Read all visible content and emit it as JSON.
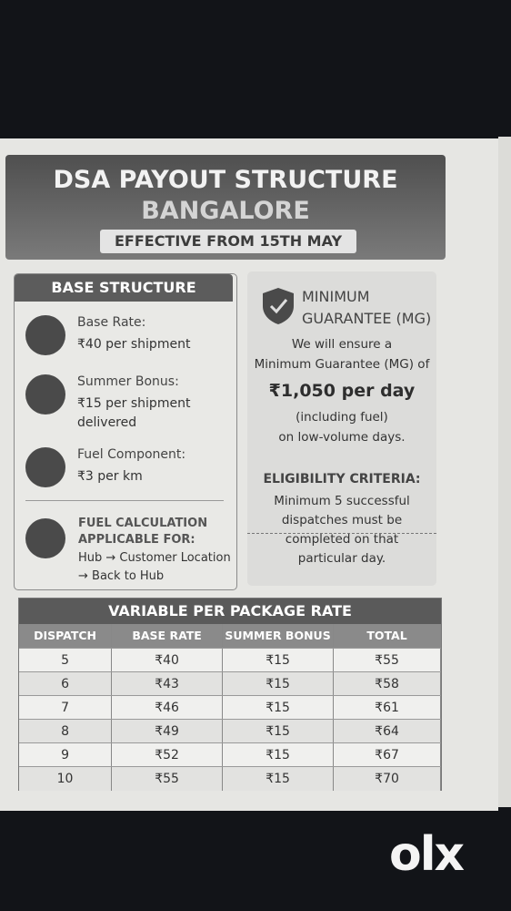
{
  "header": {
    "title": "DSA PAYOUT STRUCTURE",
    "city": "BANGALORE",
    "effective": "EFFECTIVE FROM 15TH MAY"
  },
  "base_structure": {
    "title": "BASE STRUCTURE",
    "items": [
      {
        "label": "Base Rate:",
        "lines": [
          "₹40 per shipment"
        ]
      },
      {
        "label": "Summer Bonus:",
        "lines": [
          "₹15 per shipment",
          "delivered"
        ]
      },
      {
        "label": "Fuel Component:",
        "lines": [
          "₹3 per km"
        ]
      }
    ],
    "fuel_calculation": {
      "title": [
        "FUEL CALCULATION",
        "APPLICABLE FOR:"
      ],
      "lines": [
        "Hub → Customer Location",
        "→ Back to Hub"
      ]
    }
  },
  "minimum_guarantee": {
    "title": [
      "MINIMUM",
      "GUARANTEE (MG)"
    ],
    "intro": [
      "We will ensure a",
      "Minimum Guarantee (MG) of"
    ],
    "amount": "₹1,050 per day",
    "note": [
      "(including fuel)",
      "on low-volume days."
    ],
    "eligibility_title": "ELIGIBILITY CRITERIA:",
    "eligibility": [
      "Minimum 5 successful",
      "dispatches must be",
      "completed on that",
      "particular day."
    ]
  },
  "table": {
    "title": "VARIABLE PER PACKAGE RATE",
    "headers": [
      "DISPATCH",
      "BASE RATE",
      "SUMMER BONUS",
      "TOTAL"
    ],
    "rows": [
      [
        5,
        "₹40",
        "₹15",
        "₹55"
      ],
      [
        6,
        "₹43",
        "₹15",
        "₹58"
      ],
      [
        7,
        "₹46",
        "₹15",
        "₹61"
      ],
      [
        8,
        "₹49",
        "₹15",
        "₹64"
      ],
      [
        9,
        "₹52",
        "₹15",
        "₹67"
      ],
      [
        10,
        "₹55",
        "₹15",
        "₹70"
      ]
    ]
  },
  "watermark": "olx"
}
